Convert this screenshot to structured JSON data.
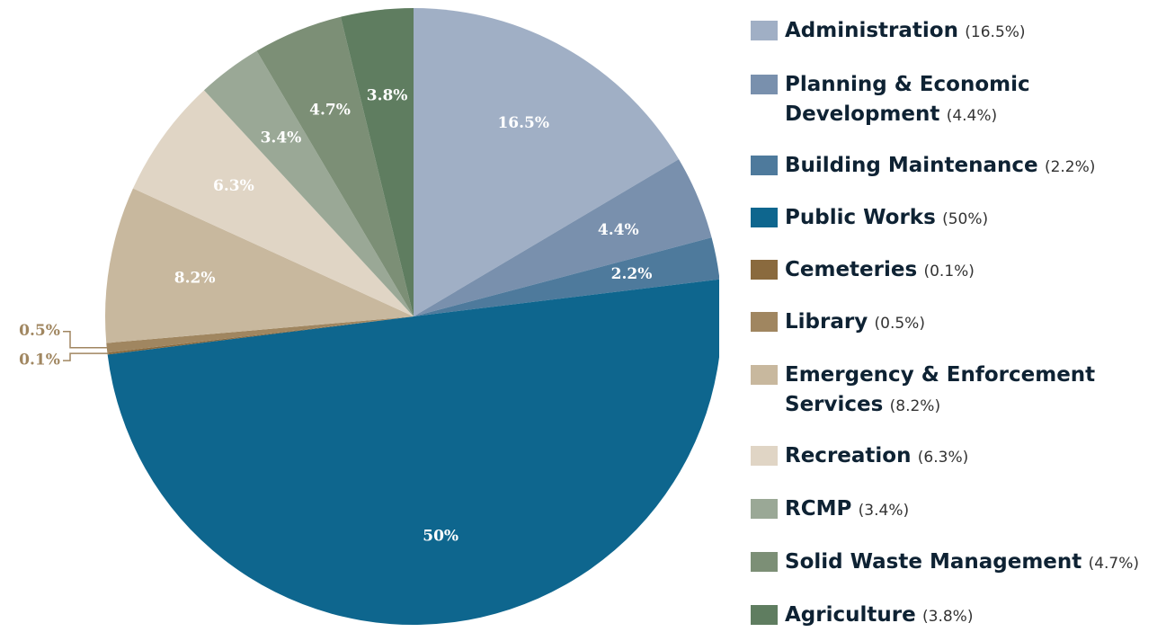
{
  "chart_data": {
    "type": "pie",
    "categories": [
      "Administration",
      "Planning & Economic Development",
      "Building Maintenance",
      "Public Works",
      "Cemeteries",
      "Library",
      "Emergency & Enforcement Services",
      "Recreation",
      "RCMP",
      "Solid Waste Management",
      "Agriculture"
    ],
    "values": [
      16.5,
      4.4,
      2.2,
      50,
      0.1,
      0.5,
      8.2,
      6.3,
      3.4,
      4.7,
      3.8
    ],
    "value_labels": [
      "16.5%",
      "4.4%",
      "2.2%",
      "50%",
      "0.1%",
      "0.5%",
      "8.2%",
      "6.3%",
      "3.4%",
      "4.7%",
      "3.8%"
    ],
    "legend_value_labels": [
      "(16.5%)",
      "(4.4%)",
      "(2.2%)",
      "(50%)",
      "(0.1%)",
      "(0.5%)",
      "(8.2%)",
      "(6.3%)",
      "(3.4%)",
      "(4.7%)",
      "(3.8%)"
    ],
    "colors": [
      "#a0afc5",
      "#7990ad",
      "#4e7a9c",
      "#0e668e",
      "#8a6a3e",
      "#a08660",
      "#c8b89e",
      "#e0d5c5",
      "#9aa896",
      "#7c8f76",
      "#5f7d60"
    ],
    "legend": "right"
  }
}
